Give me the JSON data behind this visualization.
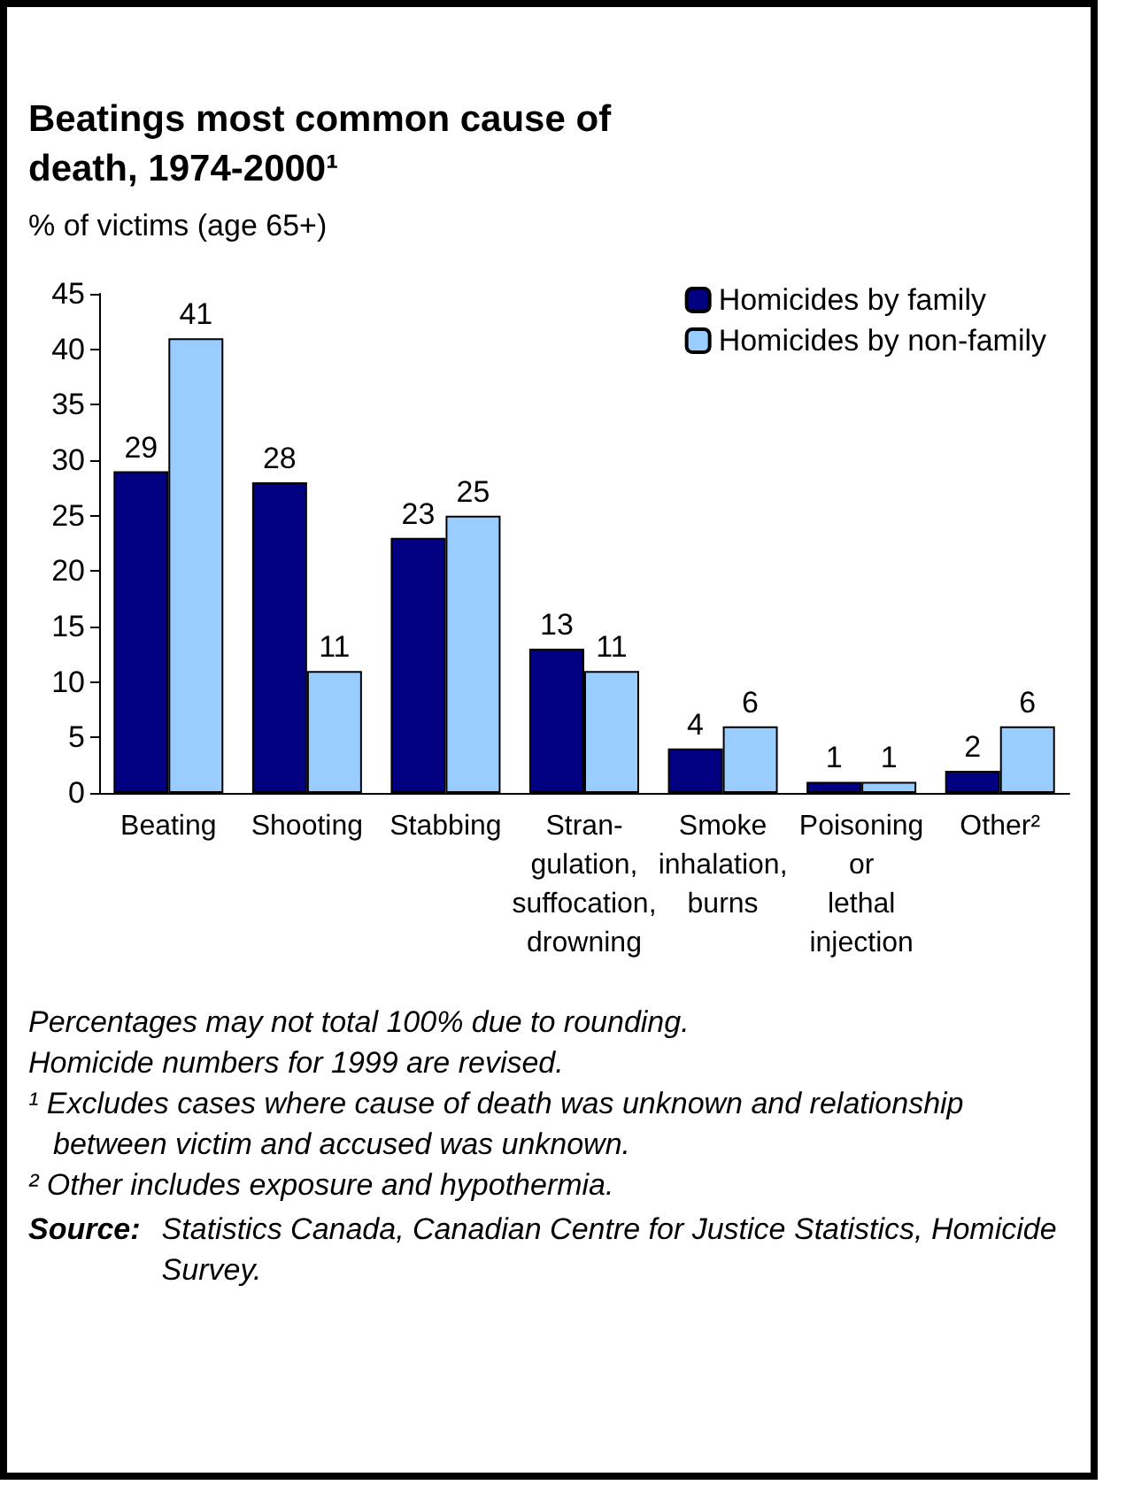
{
  "chart_data": {
    "type": "bar",
    "title": "Beatings most common cause of death, 1974-2000¹",
    "subtitle": "% of victims (age 65+)",
    "categories": [
      "Beating",
      "Shooting",
      "Stabbing",
      "Stran-\ngulation,\nsuffocation,\ndrowning",
      "Smoke\ninhalation,\nburns",
      "Poisoning\nor\nlethal\ninjection",
      "Other²"
    ],
    "series": [
      {
        "name": "Homicides by family",
        "color": "#000080",
        "values": [
          29,
          28,
          23,
          13,
          4,
          1,
          2
        ]
      },
      {
        "name": "Homicides by non-family",
        "color": "#99ccff",
        "values": [
          41,
          11,
          25,
          11,
          6,
          1,
          6
        ]
      }
    ],
    "ylim": [
      0,
      45
    ],
    "yticks": [
      0,
      5,
      10,
      15,
      20,
      25,
      30,
      35,
      40,
      45
    ],
    "grid": false,
    "legend": "top right",
    "data_labels": true,
    "annotations": [
      "Percentages may not total 100% due to rounding.",
      "Homicide numbers for 1999 are revised.",
      "¹ Excludes  cases where cause of death was unknown and relationship between victim and accused was unknown.",
      "² Other includes exposure and hypothermia.",
      "Source: Statistics Canada, Canadian Centre for Justice Statistics, Homicide Survey."
    ]
  }
}
